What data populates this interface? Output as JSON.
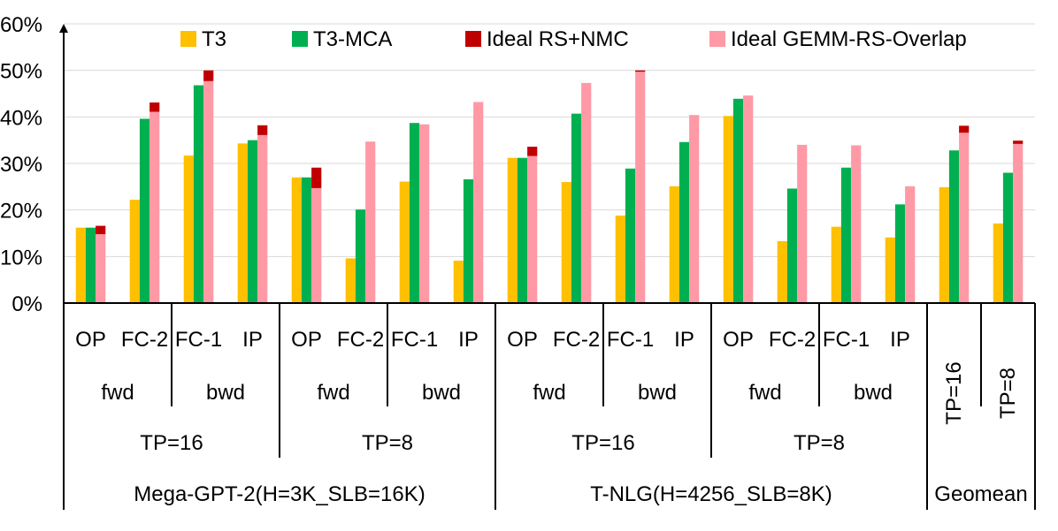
{
  "chart_data": {
    "type": "bar",
    "title": "",
    "xlabel": "",
    "ylabel": "",
    "ylim": [
      0,
      60
    ],
    "yticks": [
      0,
      10,
      20,
      30,
      40,
      50,
      60
    ],
    "ytick_labels": [
      "0%",
      "10%",
      "20%",
      "30%",
      "40%",
      "50%",
      "60%"
    ],
    "grid": true,
    "legend_position": "top",
    "categories": [
      "OP",
      "FC-2",
      "FC-1",
      "IP",
      "OP",
      "FC-2",
      "FC-1",
      "IP",
      "OP",
      "FC-2",
      "FC-1",
      "IP",
      "OP",
      "FC-2",
      "FC-1",
      "IP",
      "",
      ""
    ],
    "series": [
      {
        "name": "T3",
        "color": "#ffc000",
        "values": [
          16.2,
          22.2,
          31.7,
          34.3,
          27.0,
          9.6,
          26.1,
          9.1,
          31.2,
          26.0,
          18.8,
          25.1,
          40.2,
          13.3,
          16.4,
          14.1,
          24.9,
          17.1
        ]
      },
      {
        "name": "T3-MCA",
        "color": "#00b050",
        "values": [
          16.2,
          39.6,
          46.8,
          35.0,
          27.0,
          20.1,
          38.7,
          26.6,
          31.2,
          40.7,
          28.9,
          34.6,
          43.9,
          24.6,
          29.1,
          21.2,
          32.8,
          28.0
        ]
      },
      {
        "name": "Ideal GEMM-RS-Overlap",
        "color": "#ff99a6",
        "values": [
          14.8,
          41.1,
          47.7,
          36.1,
          24.7,
          34.7,
          38.4,
          43.2,
          31.6,
          47.3,
          49.7,
          40.4,
          44.6,
          34.0,
          33.9,
          25.1,
          36.6,
          34.2
        ]
      },
      {
        "name": "Ideal RS+NMC",
        "color": "#c00000",
        "values": [
          16.6,
          43.1,
          50.0,
          38.2,
          29.1,
          34.7,
          38.4,
          43.2,
          33.6,
          47.3,
          50.0,
          40.4,
          44.6,
          34.0,
          33.9,
          25.1,
          38.1,
          34.9
        ]
      }
    ],
    "legend": [
      "T3",
      "T3-MCA",
      "Ideal RS+NMC",
      "Ideal GEMM-RS-Overlap"
    ],
    "group_labels": {
      "direction": [
        "fwd",
        "bwd",
        "fwd",
        "bwd",
        "fwd",
        "bwd",
        "fwd",
        "bwd"
      ],
      "tp": [
        "TP=16",
        "TP=8",
        "TP=16",
        "TP=8"
      ],
      "geomean_tp": [
        "TP=16",
        "TP=8"
      ],
      "model": [
        "Mega-GPT-2(H=3K_SLB=16K)",
        "T-NLG(H=4256_SLB=8K)",
        "Geomean"
      ]
    }
  }
}
